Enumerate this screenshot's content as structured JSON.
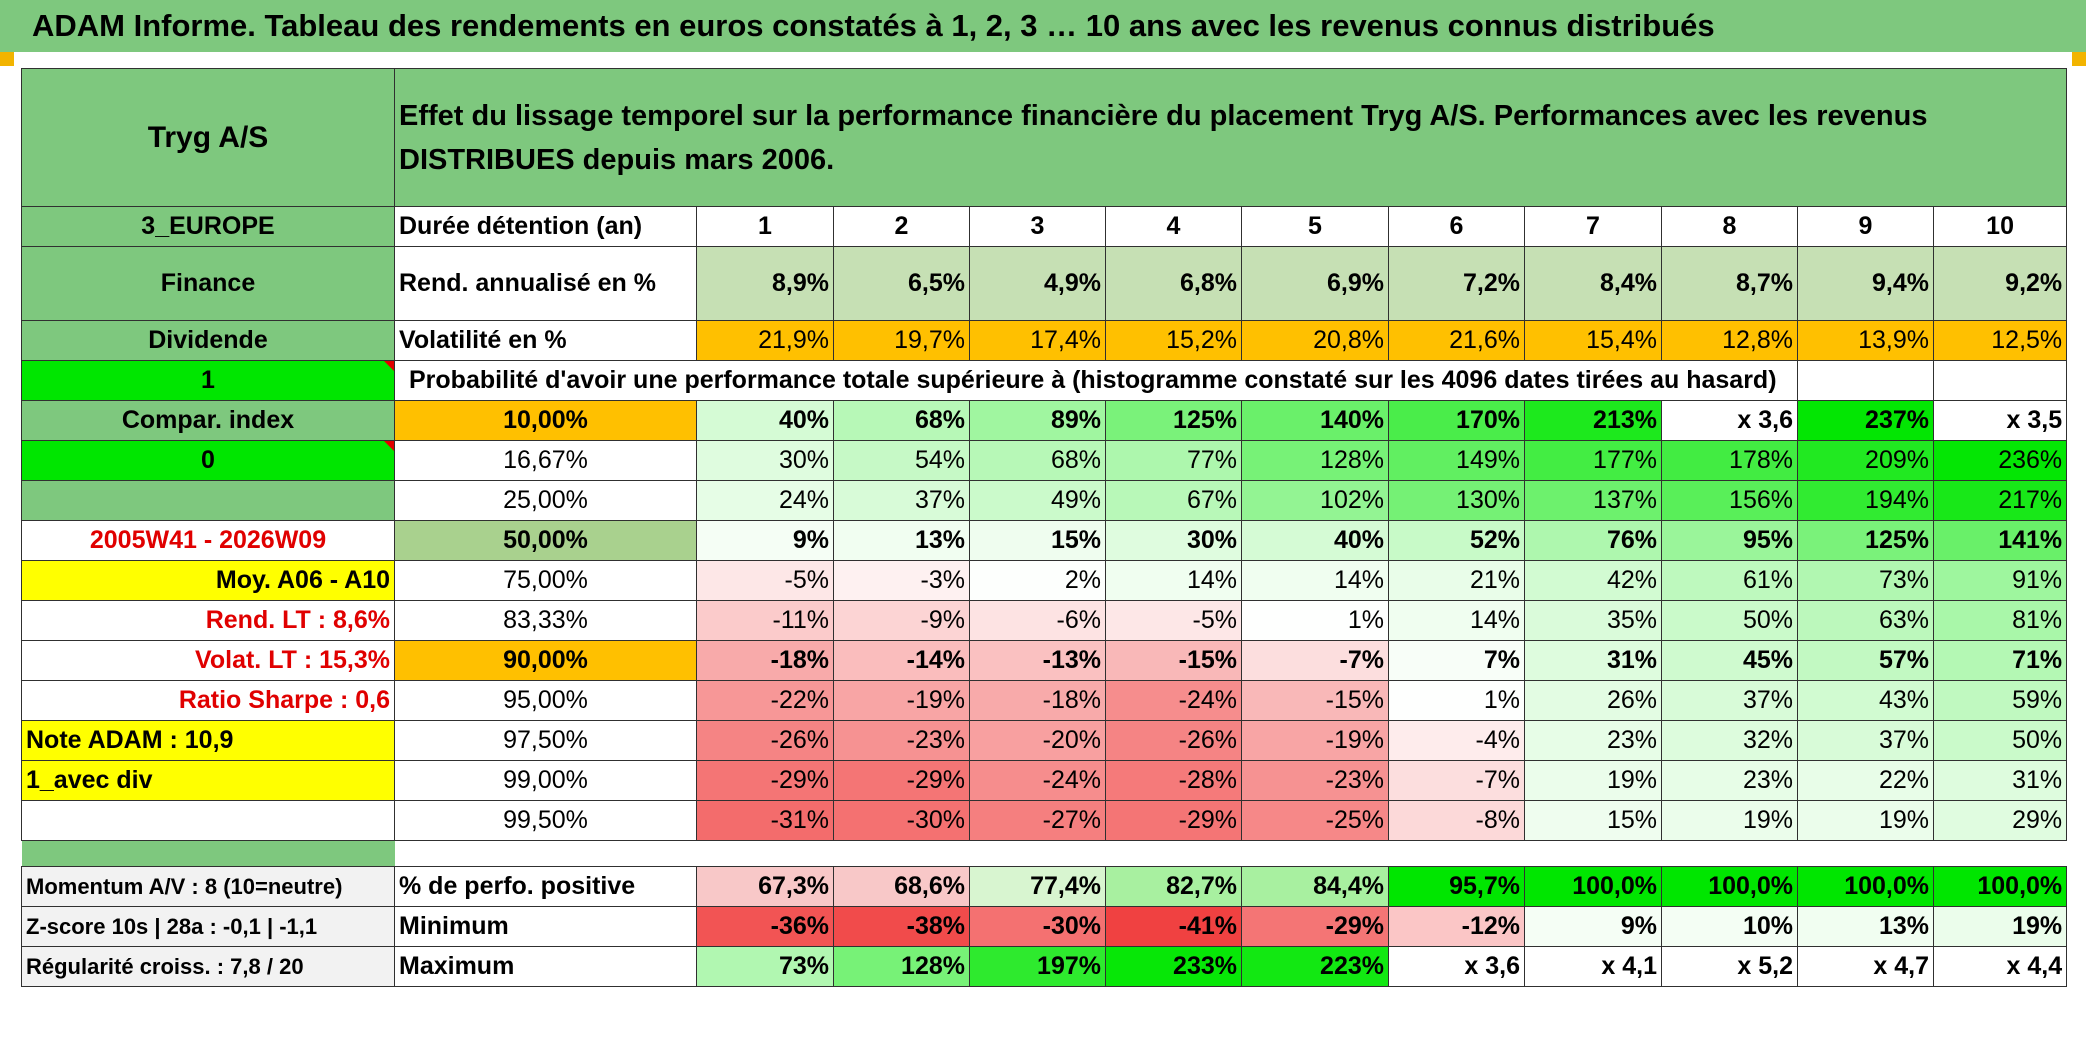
{
  "title": "ADAM Informe. Tableau des rendements en euros constatés à 1, 2, 3 … 10 ans avec les revenus connus distribués",
  "company": "Tryg A/S",
  "description": "Effet du lissage temporel sur la performance financière du placement Tryg A/S. Performances avec les revenus DISTRIBUES depuis mars 2006.",
  "left": {
    "region": "3_EUROPE",
    "sector": "Finance",
    "type": "Dividende",
    "flag1": "1",
    "compar": "Compar. index",
    "flag2": "0",
    "period": "2005W41 - 2026W09",
    "moy": "Moy. A06 - A10",
    "rend_lt": "Rend. LT :    8,6%",
    "volat_lt": "Volat. LT :    15,3%",
    "sharpe": "Ratio Sharpe :    0,6",
    "note": "Note ADAM : 10,9",
    "avec_div": "1_avec div",
    "momentum": "Momentum A/V : 8 (10=neutre)",
    "zscore": "Z-score 10s | 28a : -0,1 | -1,1",
    "regularite": "Régularité croiss. : 7,8 / 20"
  },
  "labels": {
    "duree": "Durée détention (an)",
    "rend": "Rend. annualisé en %",
    "volat": "Volatilité en %",
    "proba": "Probabilité d'avoir une performance totale supérieure à (histogramme constaté sur les 4096 dates tirées au hasard)",
    "pos": "% de perfo. positive",
    "min": "Minimum",
    "max": "Maximum"
  },
  "years": [
    "1",
    "2",
    "3",
    "4",
    "5",
    "6",
    "7",
    "8",
    "9",
    "10"
  ],
  "rend": [
    "8,9%",
    "6,5%",
    "4,9%",
    "6,8%",
    "6,9%",
    "7,2%",
    "8,4%",
    "8,7%",
    "9,4%",
    "9,2%"
  ],
  "volat": [
    "21,9%",
    "19,7%",
    "17,4%",
    "15,2%",
    "20,8%",
    "21,6%",
    "15,4%",
    "12,8%",
    "13,9%",
    "12,5%"
  ],
  "quantiles": [
    {
      "q": "10,00%",
      "v": [
        "40%",
        "68%",
        "89%",
        "125%",
        "140%",
        "170%",
        "213%",
        "x 3,6",
        "237%",
        "x 3,5"
      ]
    },
    {
      "q": "16,67%",
      "v": [
        "30%",
        "54%",
        "68%",
        "77%",
        "128%",
        "149%",
        "177%",
        "178%",
        "209%",
        "236%"
      ]
    },
    {
      "q": "25,00%",
      "v": [
        "24%",
        "37%",
        "49%",
        "67%",
        "102%",
        "130%",
        "137%",
        "156%",
        "194%",
        "217%"
      ]
    },
    {
      "q": "50,00%",
      "v": [
        "9%",
        "13%",
        "15%",
        "30%",
        "40%",
        "52%",
        "76%",
        "95%",
        "125%",
        "141%"
      ]
    },
    {
      "q": "75,00%",
      "v": [
        "-5%",
        "-3%",
        "2%",
        "14%",
        "14%",
        "21%",
        "42%",
        "61%",
        "73%",
        "91%"
      ]
    },
    {
      "q": "83,33%",
      "v": [
        "-11%",
        "-9%",
        "-6%",
        "-5%",
        "1%",
        "14%",
        "35%",
        "50%",
        "63%",
        "81%"
      ]
    },
    {
      "q": "90,00%",
      "v": [
        "-18%",
        "-14%",
        "-13%",
        "-15%",
        "-7%",
        "7%",
        "31%",
        "45%",
        "57%",
        "71%"
      ]
    },
    {
      "q": "95,00%",
      "v": [
        "-22%",
        "-19%",
        "-18%",
        "-24%",
        "-15%",
        "1%",
        "26%",
        "37%",
        "43%",
        "59%"
      ]
    },
    {
      "q": "97,50%",
      "v": [
        "-26%",
        "-23%",
        "-20%",
        "-26%",
        "-19%",
        "-4%",
        "23%",
        "32%",
        "37%",
        "50%"
      ]
    },
    {
      "q": "99,00%",
      "v": [
        "-29%",
        "-29%",
        "-24%",
        "-28%",
        "-23%",
        "-7%",
        "19%",
        "23%",
        "22%",
        "31%"
      ]
    },
    {
      "q": "99,50%",
      "v": [
        "-31%",
        "-30%",
        "-27%",
        "-29%",
        "-25%",
        "-8%",
        "15%",
        "19%",
        "19%",
        "29%"
      ]
    }
  ],
  "pos": [
    "67,3%",
    "68,6%",
    "77,4%",
    "82,7%",
    "84,4%",
    "95,7%",
    "100,0%",
    "100,0%",
    "100,0%",
    "100,0%"
  ],
  "min": [
    "-36%",
    "-38%",
    "-30%",
    "-41%",
    "-29%",
    "-12%",
    "9%",
    "10%",
    "13%",
    "19%"
  ],
  "max": [
    "73%",
    "128%",
    "197%",
    "233%",
    "223%",
    "x 3,6",
    "x 4,1",
    "x 5,2",
    "x 4,7",
    "x 4,4"
  ],
  "colors": {
    "header_green": "#7ec87e",
    "bright_green": "#00e600",
    "yellow": "#ffff00",
    "orange": "#ffc000",
    "red_text": "#e00000"
  }
}
